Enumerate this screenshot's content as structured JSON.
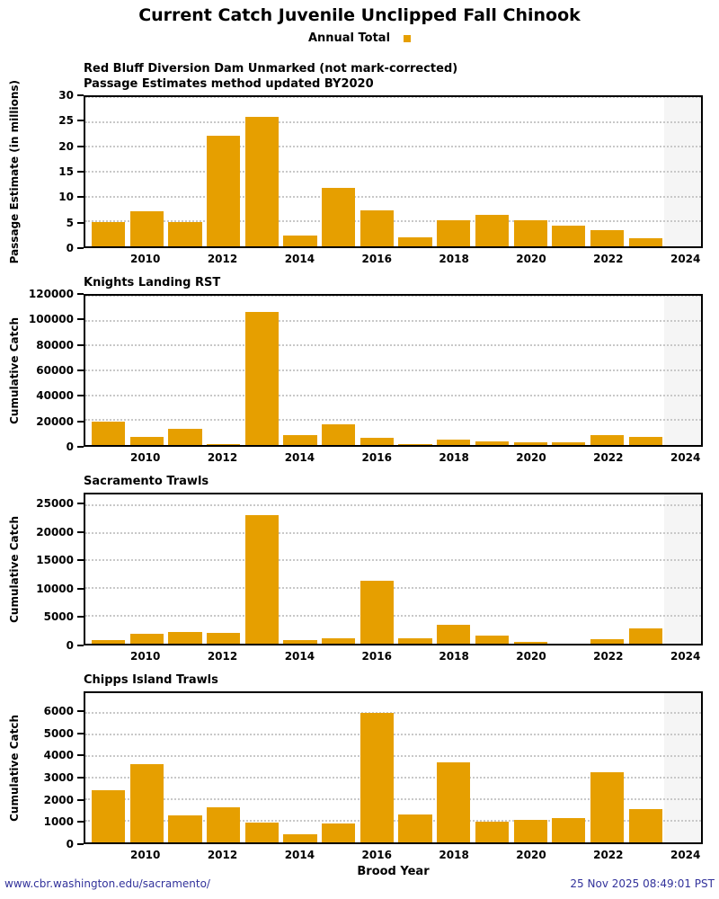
{
  "title": "Current Catch Juvenile Unclipped Fall Chinook",
  "legend": {
    "label": "Annual Total",
    "color": "#E69F00"
  },
  "x_axis": {
    "label": "Brood Year",
    "ticks": [
      2010,
      2012,
      2014,
      2016,
      2018,
      2020,
      2022,
      2024
    ],
    "range": [
      2008.4,
      2024.45
    ],
    "shaded_from": 2023.5
  },
  "years": [
    2009,
    2010,
    2011,
    2012,
    2013,
    2014,
    2015,
    2016,
    2017,
    2018,
    2019,
    2020,
    2021,
    2022,
    2023
  ],
  "chart_data": [
    {
      "type": "bar",
      "title": "Red Bluff Diversion Dam Unmarked (not mark-corrected)",
      "subtitle": "Passage Estimates method updated BY2020",
      "ylabel": "Passage Estimate (in millions)",
      "yticks": [
        0,
        5,
        10,
        15,
        20,
        25,
        30
      ],
      "ylim": [
        0,
        30
      ],
      "ymax": 30,
      "values": [
        4.9,
        7.0,
        4.9,
        22.2,
        26.1,
        2.2,
        11.8,
        7.3,
        1.8,
        5.3,
        6.4,
        5.3,
        4.1,
        3.3,
        1.7
      ]
    },
    {
      "type": "bar",
      "title": "Knights Landing RST",
      "ylabel": "Cumulative Catch",
      "yticks": [
        0,
        20000,
        40000,
        60000,
        80000,
        100000,
        120000
      ],
      "ylim": [
        0,
        120000
      ],
      "ymax": 120000,
      "values": [
        18800,
        6500,
        13000,
        800,
        107000,
        8000,
        16700,
        6000,
        800,
        4500,
        3000,
        2400,
        2400,
        8000,
        6700
      ]
    },
    {
      "type": "bar",
      "title": "Sacramento Trawls",
      "ylabel": "Cumulative Catch",
      "yticks": [
        0,
        5000,
        10000,
        15000,
        20000,
        25000
      ],
      "ylim": [
        0,
        26900
      ],
      "ymax": 26900,
      "values": [
        650,
        1800,
        2100,
        2000,
        23200,
        650,
        1000,
        11300,
        900,
        3350,
        1450,
        350,
        0,
        850,
        2700
      ]
    },
    {
      "type": "bar",
      "title": "Chipps Island Trawls",
      "ylabel": "Cumulative Catch",
      "yticks": [
        0,
        1000,
        2000,
        3000,
        4000,
        5000,
        6000
      ],
      "ylim": [
        0,
        6900
      ],
      "ymax": 6900,
      "values": [
        2430,
        3620,
        1230,
        1620,
        910,
        390,
        860,
        5980,
        1270,
        3700,
        940,
        1020,
        1140,
        3230,
        1540
      ]
    }
  ],
  "footer": {
    "url": "www.cbr.washington.edu/sacramento/",
    "timestamp": "25 Nov 2025 08:49:01 PST"
  },
  "colors": {
    "bar": "#E69F00",
    "shade": "#F5F5F5",
    "grid": "#C8C8C8",
    "link": "#32329B"
  }
}
